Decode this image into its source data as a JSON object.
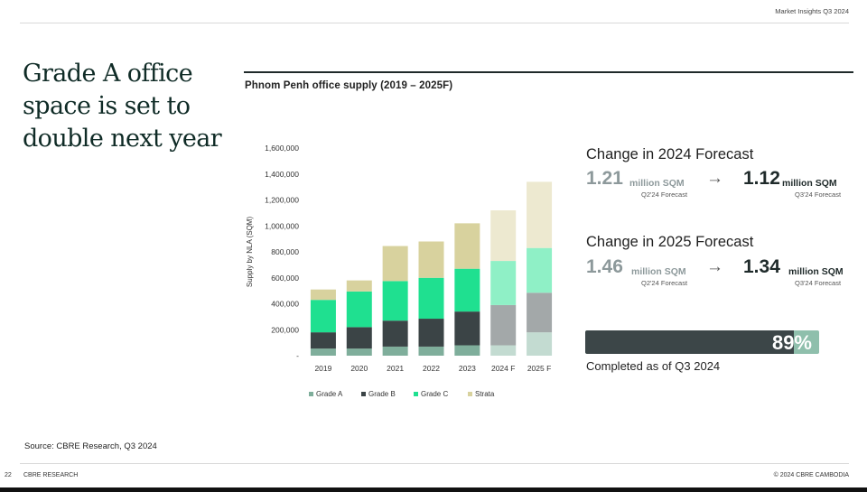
{
  "header": {
    "right": "Market Insights Q3 2024"
  },
  "headline": "Grade A office space is set to double next year",
  "chart_data": {
    "type": "bar",
    "stacked": true,
    "title": "Phnom Penh office supply (2019 – 2025F)",
    "xlabel": "",
    "ylabel": "Supply by NLA (SQM)",
    "ylim": [
      0,
      1600000
    ],
    "yticks": [
      0,
      200000,
      400000,
      600000,
      800000,
      1000000,
      1200000,
      1400000,
      1600000
    ],
    "ytick_labels": [
      "-",
      "200,000",
      "400,000",
      "600,000",
      "800,000",
      "1,000,000",
      "1,200,000",
      "1,400,000",
      "1,600,000"
    ],
    "categories": [
      "2019",
      "2020",
      "2021",
      "2022",
      "2023",
      "2024 F",
      "2025 F"
    ],
    "forecast_categories": [
      "2024 F",
      "2025 F"
    ],
    "series": [
      {
        "name": "Grade A",
        "color": "#7fae9b",
        "forecast_color": "#c3dbd1",
        "values": [
          55000,
          55000,
          70000,
          70000,
          80000,
          80000,
          180000
        ]
      },
      {
        "name": "Grade B",
        "color": "#3b4446",
        "forecast_color": "#a3a8a9",
        "values": [
          125000,
          165000,
          200000,
          215000,
          260000,
          310000,
          305000
        ]
      },
      {
        "name": "Grade C",
        "color": "#1fe090",
        "forecast_color": "#8ff0c6",
        "values": [
          250000,
          275000,
          305000,
          315000,
          330000,
          340000,
          345000
        ]
      },
      {
        "name": "Strata",
        "color": "#d8d29e",
        "forecast_color": "#ede9d0",
        "values": [
          80000,
          85000,
          270000,
          280000,
          350000,
          390000,
          510000
        ]
      }
    ],
    "legend": "bottom"
  },
  "forecast_2024": {
    "title": "Change in 2024 Forecast",
    "old_value": "1.21",
    "old_unit": "million SQM",
    "old_period": "Q2'24 Forecast",
    "new_value": "1.12",
    "new_unit": "million SQM",
    "new_period": "Q3'24 Forecast",
    "arrow": "→"
  },
  "forecast_2025": {
    "title": "Change in 2025 Forecast",
    "old_value": "1.46",
    "old_unit": "million SQM",
    "old_period": "Q2'24 Forecast",
    "new_value": "1.34",
    "new_unit": "million SQM",
    "new_period": "Q3'24 Forecast",
    "arrow": "→"
  },
  "progress": {
    "value": 0.89,
    "label": "89%",
    "caption": "Completed as of Q3 2024"
  },
  "source": "Source: CBRE Research, Q3 2024",
  "footer": {
    "page": "22",
    "left": "CBRE RESEARCH",
    "right": "© 2024 CBRE CAMBODIA"
  }
}
